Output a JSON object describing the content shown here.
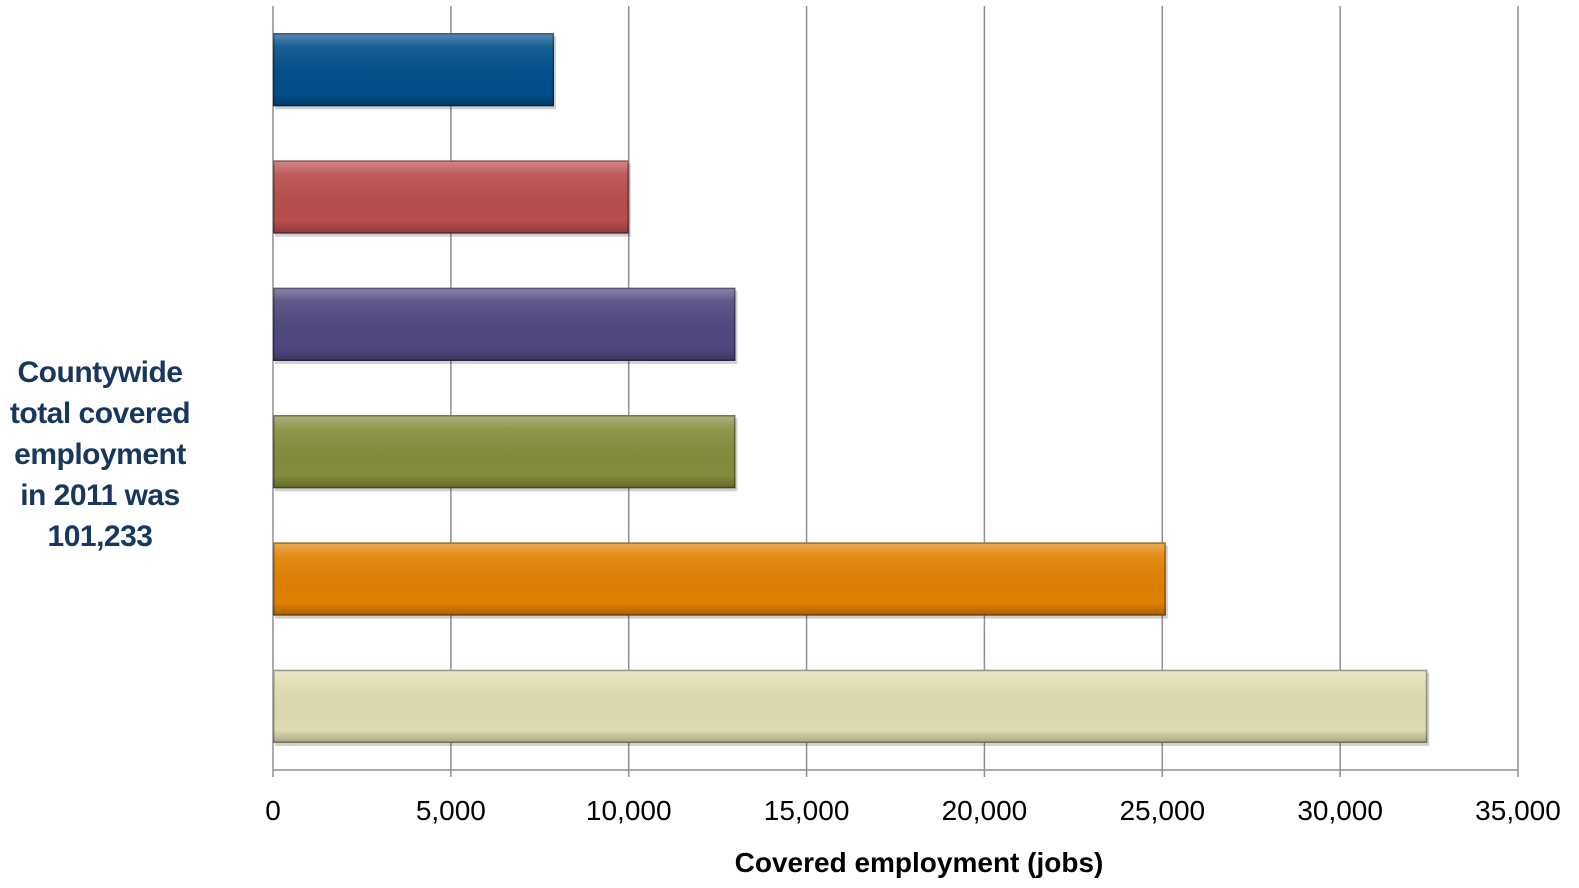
{
  "note": {
    "lines": [
      "Countywide",
      "total covered",
      "employment",
      "in 2011 was",
      "101,233"
    ]
  },
  "chart_data": {
    "type": "bar",
    "orientation": "horizontal",
    "title": "",
    "xlabel": "Covered employment (jobs)",
    "ylabel": "",
    "xlim": [
      0,
      35000
    ],
    "xticks": [
      0,
      5000,
      10000,
      15000,
      20000,
      25000,
      30000,
      35000
    ],
    "xtick_labels": [
      "0",
      "5,000",
      "10,000",
      "15,000",
      "20,000",
      "25,000",
      "30,000",
      "35,000"
    ],
    "grid": "vertical",
    "values": [
      7900,
      10000,
      13000,
      13000,
      25100,
      32450
    ],
    "colors": [
      "#004f8b",
      "#b84d4d",
      "#4f4880",
      "#858c3b",
      "#e28000",
      "#dfdcb1"
    ]
  }
}
